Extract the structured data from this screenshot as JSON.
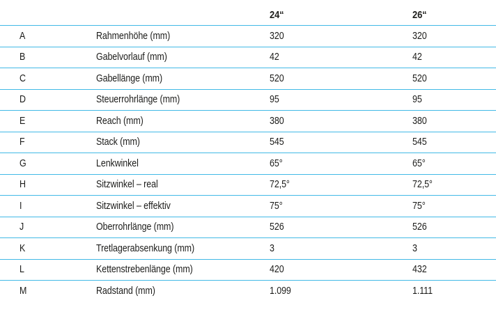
{
  "table": {
    "title": "bike-geometry-table",
    "header": {
      "col_letter": "",
      "col_label": "",
      "col_24": "24“",
      "col_26": "26“"
    },
    "rows": [
      {
        "letter": "A",
        "label": "Rahmenhöhe (mm)",
        "v24": "320",
        "v26": "320"
      },
      {
        "letter": "B",
        "label": "Gabelvorlauf (mm)",
        "v24": "42",
        "v26": "42"
      },
      {
        "letter": "C",
        "label": "Gabellänge (mm)",
        "v24": "520",
        "v26": "520"
      },
      {
        "letter": "D",
        "label": "Steuerrohrlänge (mm)",
        "v24": "95",
        "v26": "95"
      },
      {
        "letter": "E",
        "label": "Reach (mm)",
        "v24": "380",
        "v26": "380"
      },
      {
        "letter": "F",
        "label": "Stack (mm)",
        "v24": "545",
        "v26": "545"
      },
      {
        "letter": "G",
        "label": "Lenkwinkel",
        "v24": "65°",
        "v26": "65°"
      },
      {
        "letter": "H",
        "label": "Sitzwinkel – real",
        "v24": "72,5°",
        "v26": "72,5°"
      },
      {
        "letter": "I",
        "label": "Sitzwinkel – effektiv",
        "v24": "75°",
        "v26": "75°"
      },
      {
        "letter": "J",
        "label": "Oberrohrlänge (mm)",
        "v24": "526",
        "v26": "526"
      },
      {
        "letter": "K",
        "label": "Tretlagerabsenkung (mm)",
        "v24": "3",
        "v26": "3"
      },
      {
        "letter": "L",
        "label": "Kettenstrebenlänge (mm)",
        "v24": "420",
        "v26": "432"
      },
      {
        "letter": "M",
        "label": "Radstand (mm)",
        "v24": "1.099",
        "v26": "1.111"
      }
    ],
    "colors": {
      "divider": "#41b9e6",
      "text": "#1d1d1b"
    }
  }
}
